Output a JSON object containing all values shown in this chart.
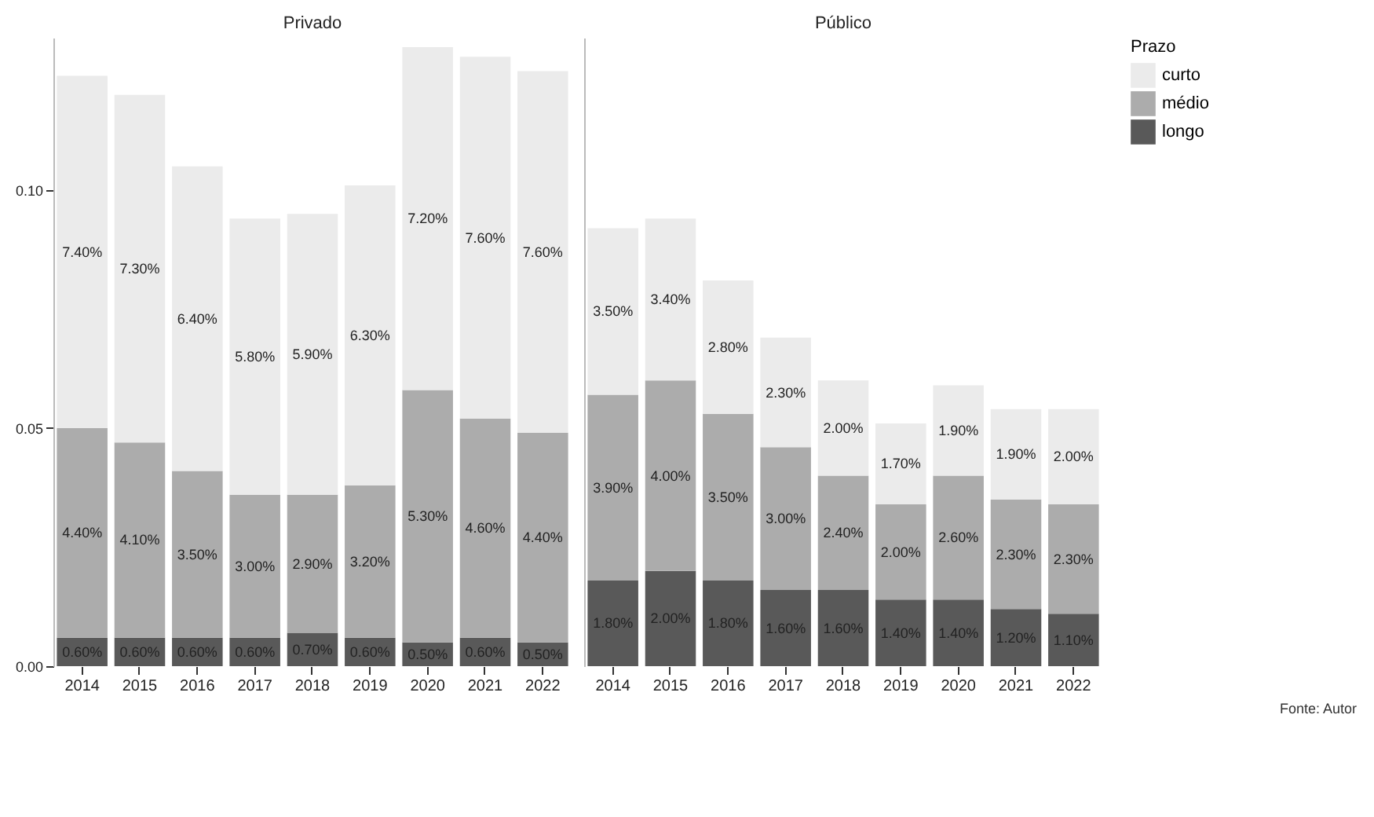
{
  "chart_data": [
    {
      "type": "bar",
      "title": "Privado",
      "categories": [
        "2014",
        "2015",
        "2016",
        "2017",
        "2018",
        "2019",
        "2020",
        "2021",
        "2022"
      ],
      "stacked": true,
      "ylim": [
        0,
        0.132
      ],
      "yticks": [
        {
          "value": 0,
          "label": "0.00"
        },
        {
          "value": 0.05,
          "label": "0.05"
        },
        {
          "value": 0.1,
          "label": "0.10"
        }
      ],
      "legend": "right",
      "series": [
        {
          "name": "longo",
          "color": "#595959",
          "values": [
            0.006,
            0.006,
            0.006,
            0.006,
            0.007,
            0.006,
            0.005,
            0.006,
            0.005
          ],
          "value_labels": [
            "0.60%",
            "0.60%",
            "0.60%",
            "0.60%",
            "0.70%",
            "0.60%",
            "0.50%",
            "0.60%",
            "0.50%"
          ]
        },
        {
          "name": "médio",
          "color": "#acacac",
          "values": [
            0.044,
            0.041,
            0.035,
            0.03,
            0.029,
            0.032,
            0.053,
            0.046,
            0.044
          ],
          "value_labels": [
            "4.40%",
            "4.10%",
            "3.50%",
            "3.00%",
            "2.90%",
            "3.20%",
            "5.30%",
            "4.60%",
            "4.40%"
          ]
        },
        {
          "name": "curto",
          "color": "#ebebeb",
          "values": [
            0.074,
            0.073,
            0.064,
            0.058,
            0.059,
            0.063,
            0.072,
            0.076,
            0.076
          ],
          "value_labels": [
            "7.40%",
            "7.30%",
            "6.40%",
            "5.80%",
            "5.90%",
            "6.30%",
            "7.20%",
            "7.60%",
            "7.60%"
          ]
        }
      ]
    },
    {
      "type": "bar",
      "title": "Público",
      "categories": [
        "2014",
        "2015",
        "2016",
        "2017",
        "2018",
        "2019",
        "2020",
        "2021",
        "2022"
      ],
      "stacked": true,
      "ylim": [
        0,
        0.132
      ],
      "tick_labels": "x",
      "legend": "right",
      "legend_title": "Prazo",
      "annotations": [
        "Fonte: Autor"
      ],
      "series": [
        {
          "name": "longo",
          "color": "#595959",
          "values": [
            0.018,
            0.02,
            0.018,
            0.016,
            0.016,
            0.014,
            0.014,
            0.012,
            0.011
          ],
          "value_labels": [
            "1.80%",
            "2.00%",
            "1.80%",
            "1.60%",
            "1.60%",
            "1.40%",
            "1.40%",
            "1.20%",
            "1.10%"
          ]
        },
        {
          "name": "médio",
          "color": "#acacac",
          "values": [
            0.039,
            0.04,
            0.035,
            0.03,
            0.024,
            0.02,
            0.026,
            0.023,
            0.023
          ],
          "value_labels": [
            "3.90%",
            "4.00%",
            "3.50%",
            "3.00%",
            "2.40%",
            "2.00%",
            "2.60%",
            "2.30%",
            "2.30%"
          ]
        },
        {
          "name": "curto",
          "color": "#ebebeb",
          "values": [
            0.035,
            0.034,
            0.028,
            0.023,
            0.02,
            0.017,
            0.019,
            0.019,
            0.02
          ],
          "value_labels": [
            "3.50%",
            "3.40%",
            "2.80%",
            "2.30%",
            "2.00%",
            "1.70%",
            "1.90%",
            "1.90%",
            "2.00%"
          ]
        }
      ]
    }
  ]
}
